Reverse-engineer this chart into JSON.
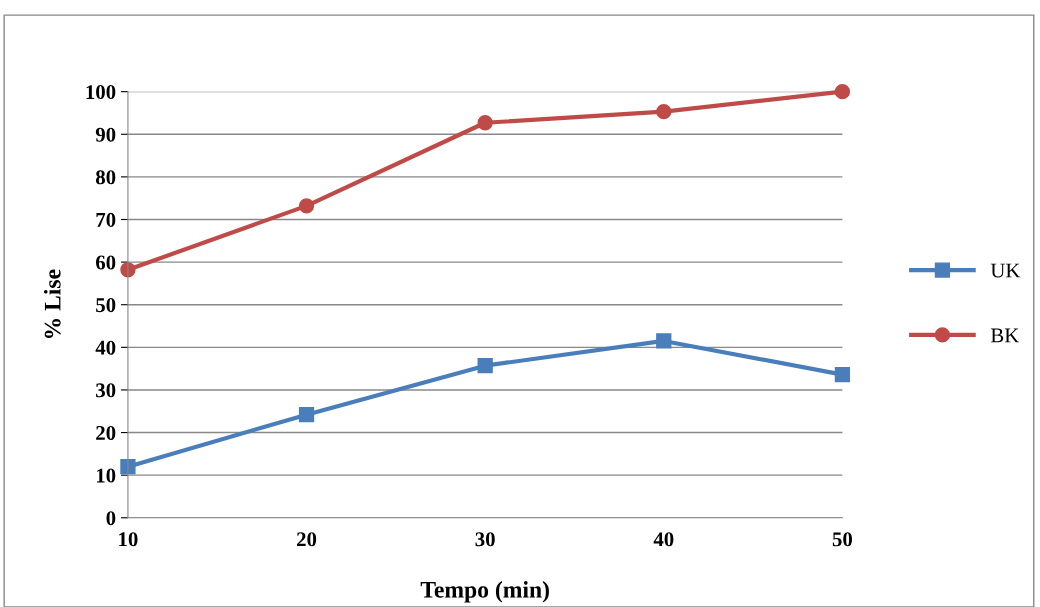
{
  "chart_data": {
    "type": "line",
    "xlabel": "Tempo (min)",
    "ylabel": "% Lise",
    "x": [
      10,
      20,
      30,
      40,
      50
    ],
    "series": [
      {
        "name": "UK",
        "color": "#4a7ebb",
        "marker": "square",
        "values": [
          12.0,
          24.2,
          35.7,
          41.5,
          33.6
        ]
      },
      {
        "name": "BK",
        "color": "#be4b48",
        "marker": "circle",
        "values": [
          58.2,
          73.2,
          92.7,
          95.3,
          100
        ]
      }
    ],
    "xlim": [
      10,
      50
    ],
    "xticks": [
      10,
      20,
      30,
      40,
      50
    ],
    "ylim": [
      0,
      100
    ],
    "yticks": [
      0,
      10,
      20,
      30,
      40,
      50,
      60,
      70,
      80,
      90,
      100
    ],
    "grid": "y",
    "legend": "right",
    "line_style": "solid"
  }
}
